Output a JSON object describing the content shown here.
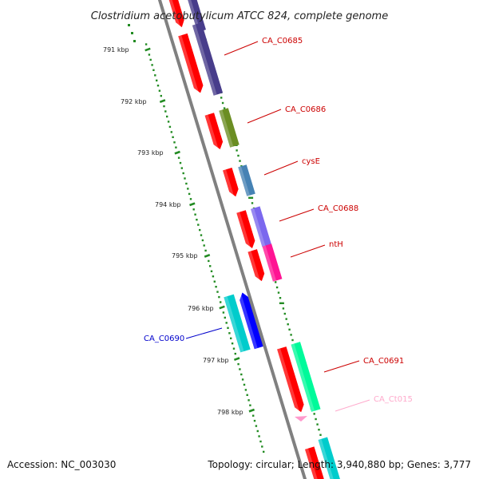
{
  "title": "Clostridium acetobutylicum ATCC 824, complete genome",
  "footer": {
    "accession": "Accession: NC_003030",
    "topology": "Topology: circular; Length: 3,940,880 bp; Genes: 3,777"
  },
  "ticks": [
    "791 kbp",
    "792 kbp",
    "793 kbp",
    "794 kbp",
    "795 kbp",
    "796 kbp",
    "797 kbp",
    "798 kbp"
  ],
  "genes": [
    {
      "label": "CA_C0685",
      "color": "#cc0000",
      "band_color": "#483d8b"
    },
    {
      "label": "CA_C0686",
      "color": "#cc0000",
      "band_color": "#6b8e23"
    },
    {
      "label": "cysE",
      "color": "#cc0000",
      "band_color": "#4682b4"
    },
    {
      "label": "CA_C0688",
      "color": "#cc0000",
      "band_color": "#7b68ee"
    },
    {
      "label": "ntH",
      "color": "#cc0000",
      "band_color": "#ff1493"
    },
    {
      "label": "CA_C0690",
      "color": "#0000cc",
      "band_color": "#0000ff"
    },
    {
      "label": "CA_C0691",
      "color": "#cc0000",
      "band_color": "#00fa9a"
    },
    {
      "label": "CA_Ct015",
      "color": "#ffaacc",
      "band_color": "#ff99cc"
    }
  ],
  "colors": {
    "backbone": "#808080",
    "tick": "#228b22",
    "cds_red": "#ff0000",
    "cds_cyan": "#00cccc"
  }
}
